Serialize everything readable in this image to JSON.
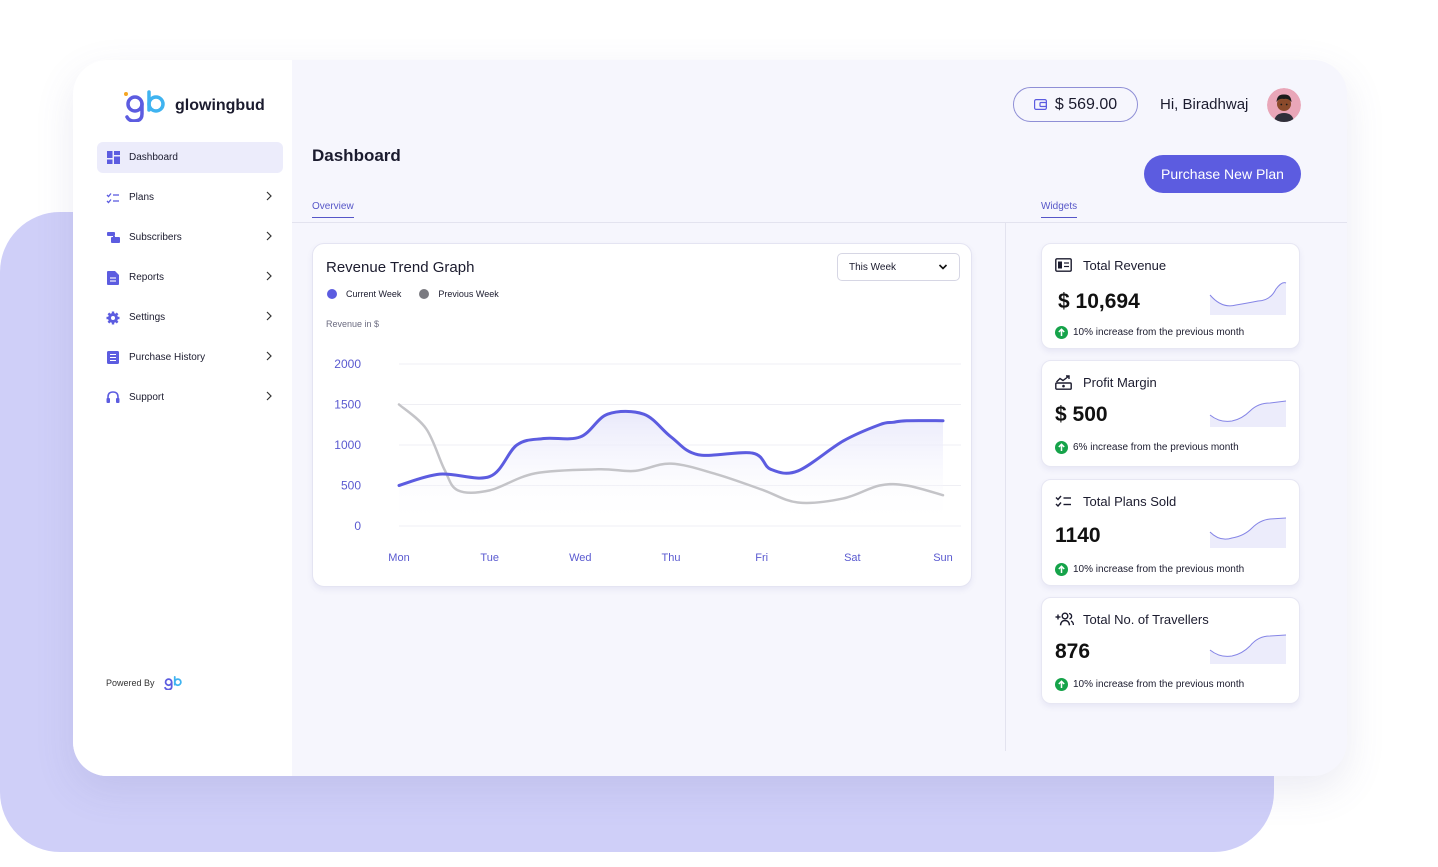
{
  "brand": {
    "name": "glowingbud",
    "powered_by": "Powered By"
  },
  "sidebar": {
    "items": [
      {
        "label": "Dashboard",
        "icon": "dashboard-icon",
        "active": true,
        "has_submenu": false
      },
      {
        "label": "Plans",
        "icon": "checklist-icon",
        "active": false,
        "has_submenu": true
      },
      {
        "label": "Subscribers",
        "icon": "subscribers-icon",
        "active": false,
        "has_submenu": true
      },
      {
        "label": "Reports",
        "icon": "report-icon",
        "active": false,
        "has_submenu": true
      },
      {
        "label": "Settings",
        "icon": "gear-icon",
        "active": false,
        "has_submenu": true
      },
      {
        "label": "Purchase History",
        "icon": "list-icon",
        "active": false,
        "has_submenu": true
      },
      {
        "label": "Support",
        "icon": "headset-icon",
        "active": false,
        "has_submenu": true
      }
    ]
  },
  "header": {
    "balance": "$ 569.00",
    "greeting": "Hi, Biradhwaj",
    "page_title": "Dashboard",
    "purchase_button": "Purchase New Plan"
  },
  "tabs": {
    "overview": "Overview",
    "widgets": "Widgets"
  },
  "revenue_card": {
    "title": "Revenue Trend Graph",
    "period": "This Week",
    "y_axis_label": "Revenue in $",
    "legend": {
      "current": "Current Week",
      "previous": "Previous Week"
    }
  },
  "colors": {
    "accent": "#5c5ce0",
    "current_series": "#5c5ce0",
    "previous_series": "#c4c4c8",
    "positive": "#16a34a"
  },
  "chart_data": {
    "type": "line",
    "title": "Revenue Trend Graph",
    "ylabel": "Revenue in $",
    "xlabel": "",
    "ylim": [
      0,
      2000
    ],
    "y_ticks": [
      0,
      500,
      1000,
      1500,
      2000
    ],
    "x": [
      "Mon",
      "Tue",
      "Wed",
      "Thu",
      "Fri",
      "Sat",
      "Sun"
    ],
    "series": [
      {
        "name": "Current Week",
        "x": [
          0,
          0.45,
          1,
          1.3,
          1.6,
          2,
          2.3,
          2.7,
          3,
          3.3,
          3.9,
          4.1,
          4.4,
          4.9,
          5.3,
          5.45,
          5.6,
          6
        ],
        "values": [
          500,
          640,
          610,
          1000,
          1080,
          1100,
          1380,
          1380,
          1100,
          880,
          900,
          700,
          680,
          1050,
          1250,
          1280,
          1300,
          1300
        ]
      },
      {
        "name": "Previous Week",
        "x": [
          0,
          0.3,
          0.5,
          0.65,
          1,
          1.5,
          2.2,
          2.6,
          3.0,
          3.5,
          4.0,
          4.4,
          4.9,
          5.3,
          5.6,
          6
        ],
        "values": [
          1500,
          1200,
          700,
          440,
          440,
          650,
          700,
          680,
          770,
          640,
          450,
          290,
          340,
          500,
          500,
          380
        ]
      }
    ]
  },
  "widgets": [
    {
      "title": "Total Revenue",
      "icon": "revenue-card-icon",
      "value": "$ 10,694",
      "change": "10% increase from the previous month"
    },
    {
      "title": "Profit Margin",
      "icon": "profit-chart-icon",
      "value": "$ 500",
      "change": "6% increase from the previous month"
    },
    {
      "title": "Total Plans Sold",
      "icon": "checklist-icon",
      "value": "1140",
      "change": "10% increase from the previous month"
    },
    {
      "title": "Total No. of Travellers",
      "icon": "add-users-icon",
      "value": "876",
      "change": "10% increase from the previous month"
    }
  ]
}
